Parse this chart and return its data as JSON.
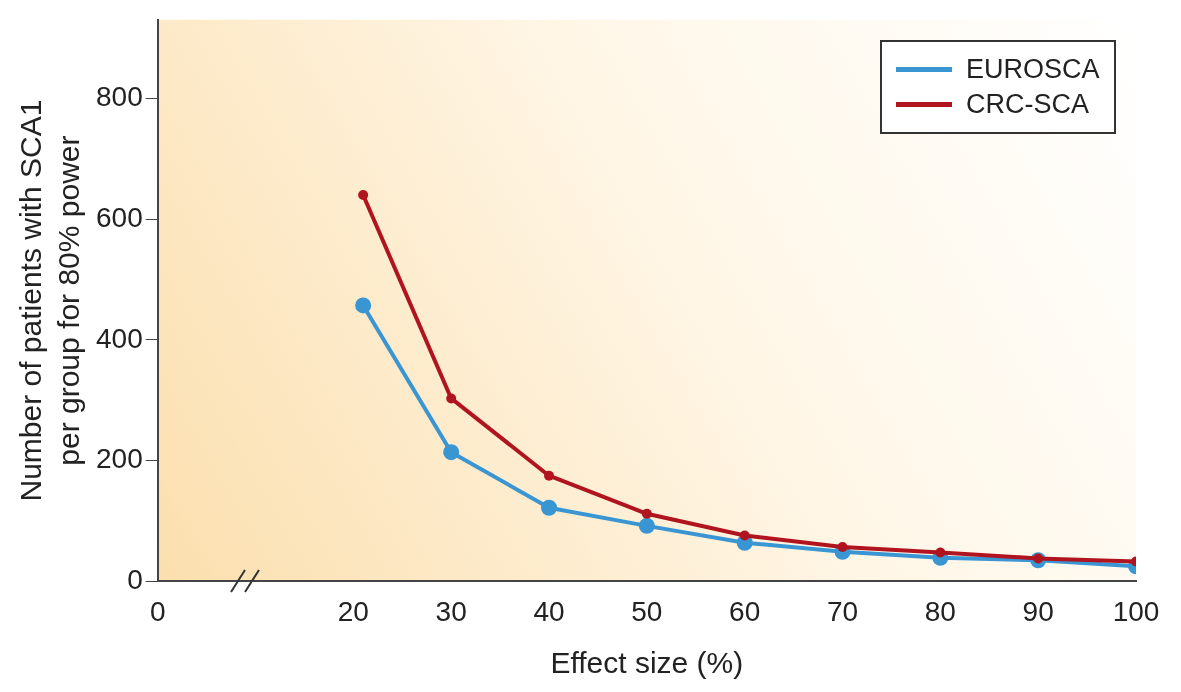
{
  "chart_data": {
    "type": "line",
    "xlabel": "Effect size (%)",
    "ylabel": "Number of patients with SCA1 per group for 80% power",
    "xlim": [
      0,
      100
    ],
    "xticks": [
      0,
      20,
      30,
      40,
      50,
      60,
      70,
      80,
      90,
      100
    ],
    "ylim": [
      0,
      930
    ],
    "yticks": [
      0,
      200,
      400,
      600,
      800
    ],
    "series": [
      {
        "name": "EUROSCA",
        "color": "#3a96d2",
        "x": [
          21,
          30,
          40,
          50,
          60,
          70,
          80,
          90,
          100
        ],
        "values": [
          457,
          214,
          122,
          92,
          64,
          49,
          39,
          35,
          25
        ]
      },
      {
        "name": "CRC-SCA",
        "color": "#b0141e",
        "x": [
          21,
          30,
          40,
          50,
          60,
          70,
          80,
          90,
          100
        ],
        "values": [
          640,
          303,
          175,
          112,
          76,
          57,
          48,
          38,
          33
        ]
      }
    ],
    "marker": "circle",
    "line_style": "solid",
    "grid": false,
    "legend": "top right"
  }
}
